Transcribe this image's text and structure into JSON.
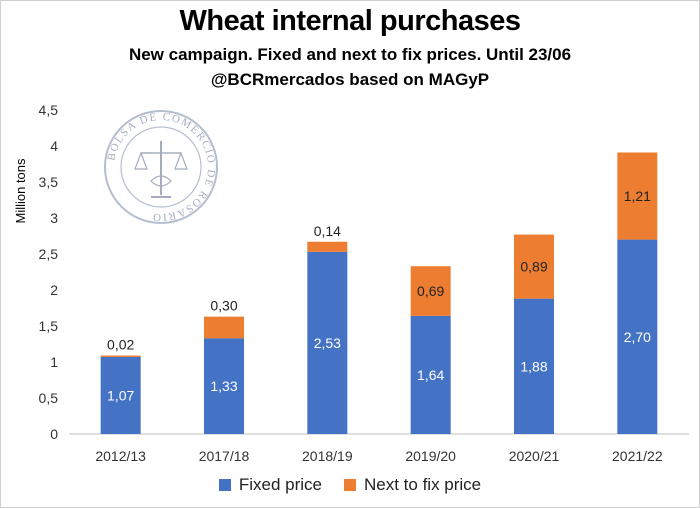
{
  "chart_data": {
    "type": "bar",
    "stacked": true,
    "title": "Wheat internal purchases",
    "subtitle": "New campaign. Fixed and next to fix prices. Until 23/06",
    "source": "@BCRmercados based on MAGyP",
    "ylabel": "Million tons",
    "xlabel": "",
    "ylim": [
      0,
      4.5
    ],
    "yticks": [
      "0",
      "0,5",
      "1",
      "1,5",
      "2",
      "2,5",
      "3",
      "3,5",
      "4",
      "4,5"
    ],
    "categories": [
      "2012/13",
      "2017/18",
      "2018/19",
      "2019/20",
      "2020/21",
      "2021/22"
    ],
    "series": [
      {
        "name": "Fixed price",
        "color": "#4472c4",
        "values": [
          1.07,
          1.33,
          2.53,
          1.64,
          1.88,
          2.7
        ],
        "labels": [
          "1,07",
          "1,33",
          "2,53",
          "1,64",
          "1,88",
          "2,70"
        ]
      },
      {
        "name": "Next to fix price",
        "color": "#ed7d31",
        "values": [
          0.02,
          0.3,
          0.14,
          0.69,
          0.89,
          1.21
        ],
        "labels": [
          "0,02",
          "0,30",
          "0,14",
          "0,69",
          "0,89",
          "1,21"
        ]
      }
    ],
    "grid": false,
    "legend_position": "bottom"
  },
  "watermark": {
    "text": "BOLSA DE COMERCIO DE ROSARIO"
  }
}
